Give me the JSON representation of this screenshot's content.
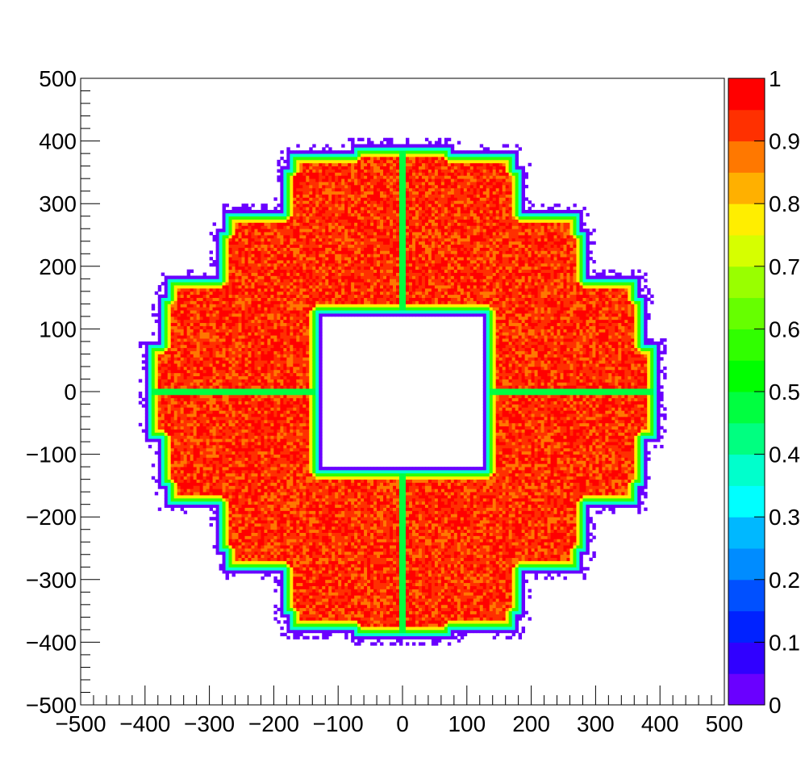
{
  "chart_data": {
    "type": "heatmap",
    "title": "",
    "xlabel": "",
    "ylabel": "",
    "xlim": [
      -500,
      500
    ],
    "ylim": [
      -500,
      500
    ],
    "xticks": [
      -500,
      -400,
      -300,
      -200,
      -100,
      0,
      100,
      200,
      300,
      400,
      500
    ],
    "yticks": [
      -500,
      -400,
      -300,
      -200,
      -100,
      0,
      100,
      200,
      300,
      400,
      500
    ],
    "xtick_labels": [
      "−500",
      "−400",
      "−300",
      "−200",
      "−100",
      "0",
      "100",
      "200",
      "300",
      "400",
      "500"
    ],
    "ytick_labels": [
      "−500",
      "−400",
      "−300",
      "−200",
      "−100",
      "0",
      "100",
      "200",
      "300",
      "400",
      "500"
    ],
    "z_range": [
      0,
      1
    ],
    "colorbar_labels": [
      "0",
      "0.1",
      "0.2",
      "0.3",
      "0.4",
      "0.5",
      "0.6",
      "0.7",
      "0.8",
      "0.9",
      "1"
    ],
    "colorbar_colors": [
      "#6a00ff",
      "#3000ff",
      "#0022ff",
      "#0050ff",
      "#008cff",
      "#00b8ff",
      "#00ffff",
      "#00ffcc",
      "#00ff80",
      "#00ff40",
      "#00ff00",
      "#30ff00",
      "#66ff00",
      "#99ff00",
      "#d6ff00",
      "#ffee00",
      "#ffb000",
      "#ff7800",
      "#ff3000",
      "#ff0000"
    ],
    "empty_inner_region": {
      "x": [
        -125,
        125
      ],
      "y": [
        -120,
        120
      ]
    },
    "outer_outline": [
      [
        -80,
        395
      ],
      [
        80,
        395
      ],
      [
        80,
        385
      ],
      [
        180,
        385
      ],
      [
        180,
        360
      ],
      [
        190,
        360
      ],
      [
        190,
        290
      ],
      [
        280,
        290
      ],
      [
        280,
        260
      ],
      [
        290,
        260
      ],
      [
        290,
        185
      ],
      [
        370,
        185
      ],
      [
        370,
        155
      ],
      [
        380,
        155
      ],
      [
        380,
        80
      ],
      [
        400,
        80
      ],
      [
        400,
        -80
      ],
      [
        380,
        -80
      ],
      [
        380,
        -155
      ],
      [
        370,
        -155
      ],
      [
        370,
        -185
      ],
      [
        290,
        -185
      ],
      [
        290,
        -260
      ],
      [
        280,
        -260
      ],
      [
        280,
        -290
      ],
      [
        190,
        -290
      ],
      [
        190,
        -360
      ],
      [
        180,
        -360
      ],
      [
        180,
        -385
      ],
      [
        80,
        -385
      ],
      [
        80,
        -395
      ],
      [
        -80,
        -395
      ],
      [
        -80,
        -385
      ],
      [
        -180,
        -385
      ],
      [
        -180,
        -360
      ],
      [
        -190,
        -360
      ],
      [
        -190,
        -290
      ],
      [
        -280,
        -290
      ],
      [
        -280,
        -260
      ],
      [
        -290,
        -260
      ],
      [
        -290,
        -185
      ],
      [
        -370,
        -185
      ],
      [
        -370,
        -155
      ],
      [
        -380,
        -155
      ],
      [
        -380,
        -80
      ],
      [
        -400,
        -80
      ],
      [
        -400,
        80
      ],
      [
        -380,
        80
      ],
      [
        -380,
        155
      ],
      [
        -370,
        155
      ],
      [
        -370,
        185
      ],
      [
        -290,
        185
      ],
      [
        -290,
        260
      ],
      [
        -280,
        260
      ],
      [
        -280,
        290
      ],
      [
        -190,
        290
      ],
      [
        -190,
        360
      ],
      [
        -180,
        360
      ],
      [
        -180,
        385
      ],
      [
        -80,
        385
      ]
    ],
    "cross_gap_lines": {
      "x": 0,
      "y": 0,
      "value": 0.45
    },
    "body_value": 0.95
  }
}
